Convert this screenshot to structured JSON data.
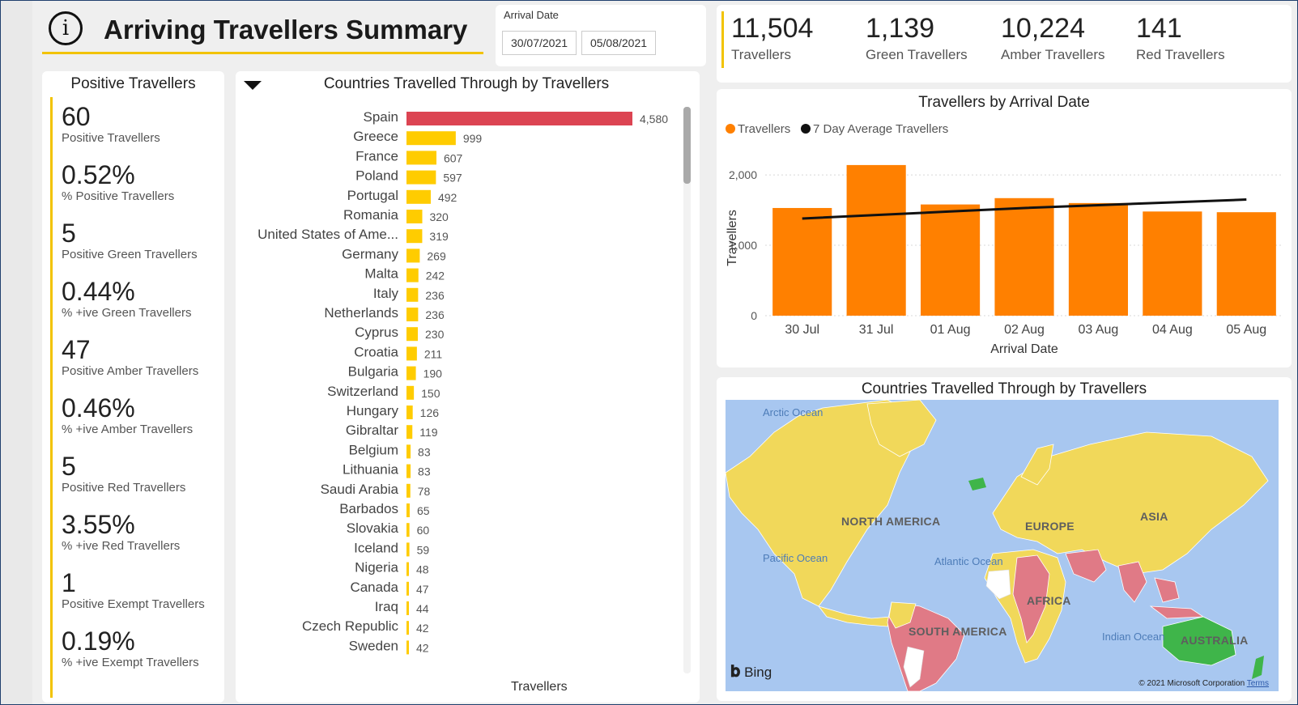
{
  "header": {
    "title": "Arriving Travellers Summary",
    "info_icon": "info-icon"
  },
  "slicer": {
    "label": "Arrival Date",
    "start": "30/07/2021",
    "end": "05/08/2021"
  },
  "kpis": [
    {
      "value": "11,504",
      "label": "Travellers"
    },
    {
      "value": "1,139",
      "label": "Green Travellers"
    },
    {
      "value": "10,224",
      "label": "Amber Travellers"
    },
    {
      "value": "141",
      "label": "Red Travellers"
    }
  ],
  "positive": {
    "title": "Positive Travellers",
    "metrics": [
      {
        "value": "60",
        "label": "Positive Travellers"
      },
      {
        "value": "0.52%",
        "label": "% Positive Travellers"
      },
      {
        "value": "5",
        "label": "Positive Green Travellers"
      },
      {
        "value": "0.44%",
        "label": "% +ive Green Travellers"
      },
      {
        "value": "47",
        "label": "Positive Amber Travellers"
      },
      {
        "value": "0.46%",
        "label": "% +ive Amber Travellers"
      },
      {
        "value": "5",
        "label": "Positive Red Travellers"
      },
      {
        "value": "3.55%",
        "label": "% +ive Red Travellers"
      },
      {
        "value": "1",
        "label": "Positive Exempt Travellers"
      },
      {
        "value": "0.19%",
        "label": "% +ive Exempt Travellers"
      }
    ]
  },
  "colors": {
    "accent": "#f2c300",
    "bar_yellow": "#ffcc00",
    "bar_red": "#dc4452",
    "orange": "#ff8000",
    "line": "#111111",
    "map_green": "#3fb54a",
    "map_red": "#e07a86",
    "map_yellow": "#f1d85a"
  },
  "chart_data": [
    {
      "type": "bar",
      "orientation": "horizontal",
      "title": "Countries Travelled Through by Travellers",
      "xlabel": "Travellers",
      "ylabel": "",
      "categories": [
        "Spain",
        "Greece",
        "France",
        "Poland",
        "Portugal",
        "Romania",
        "United States of Ame...",
        "Germany",
        "Malta",
        "Italy",
        "Netherlands",
        "Cyprus",
        "Croatia",
        "Bulgaria",
        "Switzerland",
        "Hungary",
        "Gibraltar",
        "Belgium",
        "Lithuania",
        "Saudi Arabia",
        "Barbados",
        "Slovakia",
        "Iceland",
        "Nigeria",
        "Canada",
        "Iraq",
        "Czech Republic",
        "Sweden"
      ],
      "values": [
        4580,
        999,
        607,
        597,
        492,
        320,
        319,
        269,
        242,
        236,
        236,
        230,
        211,
        190,
        150,
        126,
        119,
        83,
        83,
        78,
        65,
        60,
        59,
        48,
        47,
        44,
        42,
        42
      ],
      "value_labels": [
        "4,580",
        "999",
        "607",
        "597",
        "492",
        "320",
        "319",
        "269",
        "242",
        "236",
        "236",
        "230",
        "211",
        "190",
        "150",
        "126",
        "119",
        "83",
        "83",
        "78",
        "65",
        "60",
        "59",
        "48",
        "47",
        "44",
        "42",
        "42"
      ],
      "highlight": [
        "Spain"
      ],
      "xlim": [
        0,
        4580
      ]
    },
    {
      "type": "bar",
      "title": "Travellers by Arrival Date",
      "xlabel": "Arrival Date",
      "ylabel": "Travellers",
      "categories": [
        "30 Jul",
        "31 Jul",
        "01 Aug",
        "02 Aug",
        "03 Aug",
        "04 Aug",
        "05 Aug"
      ],
      "series": [
        {
          "name": "Travellers",
          "type": "bar",
          "values": [
            1530,
            2140,
            1580,
            1670,
            1600,
            1480,
            1470
          ]
        },
        {
          "name": "7 Day Average Travellers",
          "type": "line",
          "values": [
            1380,
            1430,
            1480,
            1530,
            1570,
            1610,
            1650
          ]
        }
      ],
      "yticks": [
        "0",
        "1,000",
        "2,000"
      ],
      "ytick_values": [
        0,
        1000,
        2000
      ],
      "ylim": [
        0,
        2300
      ],
      "legend": "top-left",
      "grid": true
    }
  ],
  "map": {
    "title": "Countries Travelled Through by Travellers",
    "continents": [
      "NORTH AMERICA",
      "EUROPE",
      "ASIA",
      "AFRICA",
      "SOUTH AMERICA",
      "AUSTRALIA"
    ],
    "oceans": [
      "Arctic Ocean",
      "Pacific Ocean",
      "Atlantic Ocean",
      "Indian Ocean"
    ],
    "brand": "Bing",
    "copyright": "© 2021 Microsoft Corporation",
    "terms": "Terms"
  }
}
